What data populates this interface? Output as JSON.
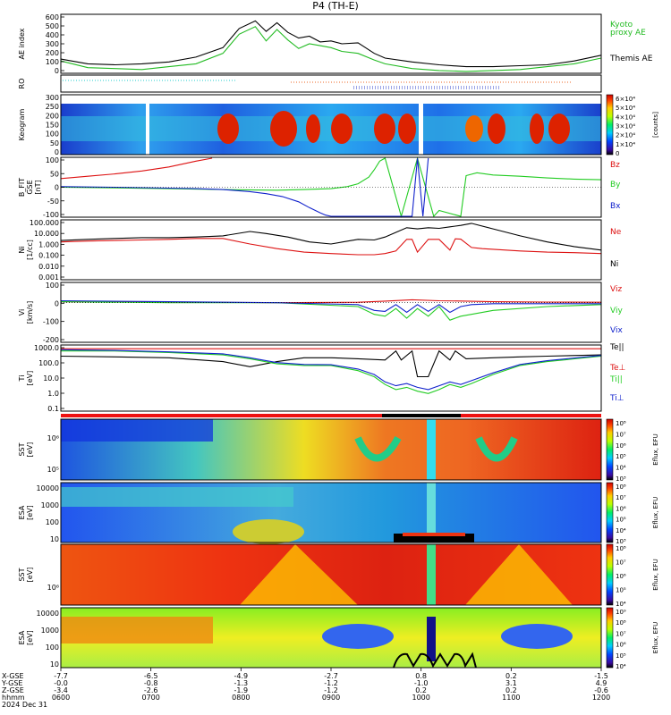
{
  "title": "P4 (TH-E)",
  "colors": {
    "kyoto": "#22bb22",
    "themis": "#000000",
    "bz": "#dd1111",
    "by": "#22cc22",
    "bx": "#1122cc",
    "frame": "#000000"
  },
  "colorbar_ticks": {
    "keogram": [
      "6×10⁴",
      "5×10⁴",
      "4×10⁴",
      "3×10⁴",
      "2×10⁴",
      "1×10⁴",
      "0"
    ],
    "energy_high": [
      "10⁸",
      "10⁷",
      "10⁶",
      "10⁵",
      "10⁴",
      "10³"
    ],
    "esa_ion": [
      "10⁸",
      "10⁷",
      "10⁶",
      "10⁵",
      "10⁴",
      "10³"
    ],
    "sst_e": [
      "10⁸",
      "10⁷",
      "10⁶",
      "10⁵",
      "10⁴"
    ],
    "esa_e": [
      "10⁹",
      "10⁸",
      "10⁷",
      "10⁶",
      "10⁵",
      "10⁴"
    ]
  },
  "chart_data": [
    {
      "type": "line",
      "ylabel": "AE index",
      "ylim": [
        0,
        600
      ],
      "yticks": [
        "600",
        "500",
        "400",
        "300",
        "200",
        "100",
        "0"
      ],
      "series": [
        {
          "name": "Themis AE",
          "color": "#000000",
          "x": [
            0,
            0.05,
            0.1,
            0.15,
            0.2,
            0.25,
            0.3,
            0.33,
            0.36,
            0.38,
            0.4,
            0.42,
            0.44,
            0.46,
            0.48,
            0.5,
            0.52,
            0.55,
            0.58,
            0.6,
            0.65,
            0.7,
            0.75,
            0.8,
            0.85,
            0.9,
            0.95,
            1.0
          ],
          "y": [
            140,
            90,
            80,
            90,
            110,
            160,
            260,
            460,
            540,
            430,
            520,
            420,
            360,
            380,
            320,
            330,
            300,
            310,
            200,
            150,
            110,
            80,
            60,
            60,
            70,
            80,
            120,
            180
          ]
        },
        {
          "name": "Kyoto proxy AE",
          "color": "#22bb22",
          "x": [
            0,
            0.05,
            0.1,
            0.15,
            0.2,
            0.25,
            0.3,
            0.33,
            0.36,
            0.38,
            0.4,
            0.42,
            0.44,
            0.46,
            0.48,
            0.5,
            0.52,
            0.55,
            0.58,
            0.6,
            0.65,
            0.7,
            0.75,
            0.8,
            0.85,
            0.9,
            0.95,
            1.0
          ],
          "y": [
            120,
            50,
            40,
            30,
            60,
            90,
            200,
            400,
            480,
            330,
            450,
            340,
            250,
            300,
            280,
            260,
            220,
            200,
            130,
            90,
            40,
            20,
            10,
            20,
            30,
            60,
            90,
            150
          ]
        }
      ]
    },
    {
      "type": "heatmap",
      "ylabel": "RO",
      "note": "roi bars"
    },
    {
      "type": "heatmap",
      "ylabel": "Keogram",
      "ylim": [
        50,
        300
      ],
      "yticks": [
        "300",
        "250",
        "200",
        "150",
        "100",
        "50",
        "0"
      ],
      "colorbar_label": "[counts]"
    },
    {
      "type": "line",
      "ylabel": "B_FIT GSE [nT]",
      "ylim": [
        -100,
        100
      ],
      "yticks": [
        "100",
        "50",
        "0",
        "-50",
        "-100"
      ],
      "series": [
        {
          "name": "Bz",
          "color": "#dd1111",
          "x": [
            0,
            0.05,
            0.1,
            0.15,
            0.2,
            0.25,
            0.28
          ],
          "y": [
            30,
            38,
            46,
            56,
            70,
            90,
            100
          ]
        },
        {
          "name": "By",
          "color": "#22cc22",
          "x": [
            0,
            0.1,
            0.2,
            0.3,
            0.4,
            0.45,
            0.5,
            0.53,
            0.55,
            0.57,
            0.58,
            0.59,
            0.6,
            0.63,
            0.66,
            0.69,
            0.7,
            0.74,
            0.75,
            0.77,
            0.8,
            0.85,
            0.9,
            0.95,
            1.0
          ],
          "y": [
            0,
            -2,
            -5,
            -8,
            -10,
            -8,
            -5,
            2,
            12,
            35,
            60,
            90,
            100,
            -100,
            100,
            -100,
            -80,
            -100,
            40,
            50,
            42,
            38,
            32,
            28,
            26
          ]
        },
        {
          "name": "Bx",
          "color": "#1122cc",
          "x": [
            0,
            0.1,
            0.2,
            0.25,
            0.3,
            0.35,
            0.38,
            0.41,
            0.44,
            0.46,
            0.48,
            0.49,
            0.5,
            0.65,
            0.66,
            0.67,
            0.68
          ],
          "y": [
            2,
            0,
            -3,
            -5,
            -8,
            -15,
            -22,
            -32,
            -50,
            -70,
            -88,
            -96,
            -100,
            -100,
            100,
            -100,
            100
          ]
        }
      ]
    },
    {
      "type": "line",
      "ylabel": "Ni [1/cc]",
      "ylog": true,
      "ylim": [
        0.001,
        100
      ],
      "yticks": [
        "100.000",
        "10.000",
        "1.000",
        "0.100",
        "0.010",
        "0.001"
      ],
      "series": [
        {
          "name": "Ne",
          "color": "#dd1111",
          "x": [
            0,
            0.05,
            0.1,
            0.15,
            0.2,
            0.25,
            0.3,
            0.35,
            0.4,
            0.45,
            0.5,
            0.55,
            0.58,
            0.6,
            0.62,
            0.64,
            0.65,
            0.66,
            0.68,
            0.7,
            0.72,
            0.73,
            0.74,
            0.76,
            0.78,
            0.8,
            0.85,
            0.9,
            0.95,
            1.0
          ],
          "y": [
            1.5,
            1.8,
            2.0,
            2.2,
            2.5,
            3.0,
            3.0,
            1.0,
            0.4,
            0.2,
            0.15,
            0.12,
            0.12,
            0.15,
            0.25,
            2.5,
            2.5,
            0.2,
            2.5,
            2.5,
            0.3,
            2.8,
            2.6,
            0.5,
            0.4,
            0.35,
            0.25,
            0.2,
            0.18,
            0.15
          ]
        },
        {
          "name": "Ni",
          "color": "#000000",
          "x": [
            0,
            0.05,
            0.1,
            0.15,
            0.2,
            0.25,
            0.3,
            0.35,
            0.38,
            0.42,
            0.46,
            0.5,
            0.55,
            0.58,
            0.6,
            0.62,
            0.64,
            0.66,
            0.68,
            0.7,
            0.72,
            0.74,
            0.76,
            0.8,
            0.85,
            0.9,
            0.95,
            1.0
          ],
          "y": [
            2,
            2.5,
            3,
            3.5,
            3.5,
            4,
            5,
            12,
            8,
            4,
            1.5,
            1.0,
            2.5,
            2.2,
            4.0,
            10,
            25,
            20,
            25,
            22,
            30,
            40,
            60,
            20,
            5,
            1.5,
            0.6,
            0.3
          ]
        }
      ]
    },
    {
      "type": "line",
      "ylabel": "Vi [km/s]",
      "ylim": [
        -200,
        100
      ],
      "yticks": [
        "100",
        "0",
        "-100",
        "-200"
      ],
      "series": [
        {
          "name": "Viz",
          "color": "#dd1111",
          "x": [
            0,
            0.2,
            0.4,
            0.55,
            0.6,
            0.65,
            0.7,
            0.75,
            0.8,
            0.9,
            1.0
          ],
          "y": [
            5,
            3,
            0,
            2,
            8,
            15,
            10,
            8,
            5,
            3,
            2
          ]
        },
        {
          "name": "Viy",
          "color": "#22cc22",
          "x": [
            0,
            0.2,
            0.4,
            0.55,
            0.58,
            0.6,
            0.62,
            0.64,
            0.66,
            0.68,
            0.7,
            0.72,
            0.74,
            0.76,
            0.8,
            0.9,
            1.0
          ],
          "y": [
            5,
            0,
            0,
            -20,
            -60,
            -70,
            -30,
            -80,
            -30,
            -70,
            -20,
            -90,
            -70,
            -60,
            -40,
            -20,
            -10
          ]
        },
        {
          "name": "Vix",
          "color": "#1122cc",
          "x": [
            0,
            0.2,
            0.4,
            0.55,
            0.58,
            0.6,
            0.62,
            0.64,
            0.66,
            0.68,
            0.7,
            0.72,
            0.74,
            0.76,
            0.8,
            1.0
          ],
          "y": [
            10,
            5,
            0,
            -10,
            -40,
            -45,
            -10,
            -50,
            -10,
            -45,
            -10,
            -50,
            -20,
            -10,
            -5,
            -5
          ]
        }
      ]
    },
    {
      "type": "line",
      "ylabel": "Ti [eV]",
      "ylog": true,
      "ylim": [
        0.05,
        5000
      ],
      "yticks": [
        "1000.0",
        "100.0",
        "10.0",
        "1.0",
        "0.1"
      ],
      "series": [
        {
          "name": "Te||",
          "color": "#000000",
          "x": [
            0,
            0.1,
            0.2,
            0.3,
            0.35,
            0.4,
            0.45,
            0.5,
            0.55,
            0.6,
            0.62,
            0.63,
            0.65,
            0.66,
            0.68,
            0.7,
            0.72,
            0.73,
            0.75,
            0.8,
            0.85,
            0.9,
            1.0
          ],
          "y": [
            800,
            700,
            600,
            300,
            120,
            300,
            600,
            600,
            500,
            400,
            2000,
            400,
            2000,
            20,
            20,
            2000,
            400,
            2000,
            500,
            600,
            700,
            800,
            1000
          ]
        },
        {
          "name": "Te⊥",
          "color": "#dd1111",
          "x": [
            0,
            0.5,
            1.0
          ],
          "y": [
            3000,
            3000,
            3000
          ]
        },
        {
          "name": "Ti||",
          "color": "#22cc22",
          "x": [
            0,
            0.1,
            0.2,
            0.3,
            0.35,
            0.4,
            0.45,
            0.5,
            0.55,
            0.58,
            0.6,
            0.62,
            0.64,
            0.66,
            0.68,
            0.7,
            0.72,
            0.74,
            0.76,
            0.8,
            0.85,
            0.9,
            1.0
          ],
          "y": [
            2000,
            2000,
            1500,
            1000,
            500,
            200,
            150,
            150,
            60,
            20,
            5,
            2,
            3,
            1.5,
            1.0,
            2,
            5,
            3,
            6,
            30,
            150,
            300,
            800
          ]
        },
        {
          "name": "Ti⊥",
          "color": "#1122cc",
          "x": [
            0,
            0.1,
            0.2,
            0.3,
            0.35,
            0.4,
            0.45,
            0.5,
            0.55,
            0.58,
            0.6,
            0.62,
            0.64,
            0.66,
            0.68,
            0.7,
            0.72,
            0.74,
            0.76,
            0.8,
            0.85,
            0.9,
            1.0
          ],
          "y": [
            2500,
            2200,
            1700,
            1200,
            600,
            250,
            180,
            170,
            80,
            30,
            8,
            4,
            6,
            3,
            2,
            4,
            8,
            5,
            10,
            40,
            180,
            350,
            900
          ]
        }
      ]
    },
    {
      "type": "heatmap",
      "ylabel": "SST [eV]",
      "colorbar_label": "Eflux, EFU"
    },
    {
      "type": "heatmap",
      "ylabel": "ESA [eV]",
      "yticks": [
        "10000",
        "1000",
        "100",
        "10"
      ],
      "colorbar_label": "Eflux, EFU"
    },
    {
      "type": "heatmap",
      "ylabel": "SST [eV]",
      "colorbar_label": "Eflux, EFU"
    },
    {
      "type": "heatmap",
      "ylabel": "ESA [eV]",
      "yticks": [
        "10000",
        "1000",
        "100",
        "10"
      ],
      "colorbar_label": "Eflux, EFU"
    }
  ],
  "labels": {
    "ae_themis": "Themis AE",
    "ae_kyoto_1": "Kyoto",
    "ae_kyoto_2": "proxy AE",
    "ae_ylabel": "AE index",
    "roi_ylabel": "RO",
    "keo_ylabel": "Keogram",
    "keo_cb": "[counts]",
    "b_ylabel1": "B_FIT",
    "b_ylabel2": "GSE",
    "b_ylabel3": "[nT]",
    "b_bz": "Bz",
    "b_by": "By",
    "b_bx": "Bx",
    "n_ylabel1": "Ni",
    "n_ylabel2": "[1/cc]",
    "n_ne": "Ne",
    "n_ni": "Ni",
    "v_ylabel1": "Vi",
    "v_ylabel2": "[km/s]",
    "v_viz": "Viz",
    "v_viy": "Viy",
    "v_vix": "Vix",
    "t_ylabel1": "Ti",
    "t_ylabel2": "[eV]",
    "t_tepar": "Te||",
    "t_teperp": "Te⊥",
    "t_tipar": "Ti||",
    "t_tiperp": "Ti⊥",
    "sst_ylabel1": "SST",
    "sst_ylabel2": "[eV]",
    "esa_ylabel1": "ESA",
    "esa_ylabel2": "[eV]",
    "cb_eflux": "Eflux, EFU"
  },
  "xaxis": {
    "row_labels": [
      "X-GSE",
      "Y-GSE",
      "Z-GSE",
      "hhmm",
      "2024 Dec 31"
    ],
    "ticks": [
      {
        "x": "-7.7",
        "y": "-0.0",
        "z": "-3.4",
        "t": "0600"
      },
      {
        "x": "-6.5",
        "y": "-0.8",
        "z": "-2.6",
        "t": "0700"
      },
      {
        "x": "-4.9",
        "y": "-1.3",
        "z": "-1.9",
        "t": "0800"
      },
      {
        "x": "-2.7",
        "y": "-1.2",
        "z": "-1.2",
        "t": "0900"
      },
      {
        "x": "0.8",
        "y": "-1.0",
        "z": "0.2",
        "t": "1000"
      },
      {
        "x": "0.2",
        "y": "3.1",
        "z": "0.2",
        "t": "1100"
      },
      {
        "x": "-1.5",
        "y": "4.9",
        "z": "-0.6",
        "t": "1200"
      }
    ]
  }
}
